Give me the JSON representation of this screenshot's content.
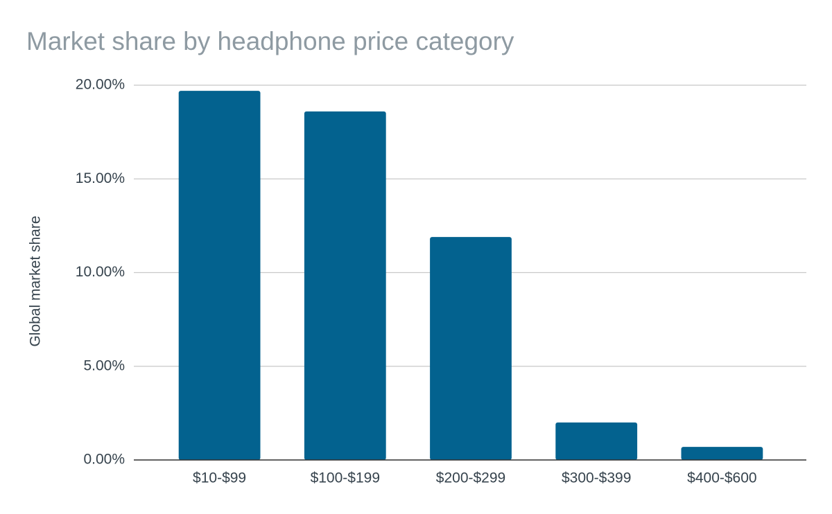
{
  "chart_data": {
    "type": "bar",
    "title": "Market share by headphone price category",
    "y_label": "Global market share",
    "categories": [
      "$10-$99",
      "$100-$199",
      "$200-$299",
      "$300-$399",
      "$400-$600"
    ],
    "values": [
      19.7,
      18.6,
      11.9,
      2.0,
      0.7
    ],
    "color": "#03628f",
    "ylim": [
      0,
      20
    ],
    "yticks": [
      {
        "value": 0,
        "label": "0.00%"
      },
      {
        "value": 5,
        "label": "5.00%"
      },
      {
        "value": 10,
        "label": "10.00%"
      },
      {
        "value": 15,
        "label": "15.00%"
      },
      {
        "value": 20,
        "label": "20.00%"
      }
    ],
    "grid": true
  }
}
